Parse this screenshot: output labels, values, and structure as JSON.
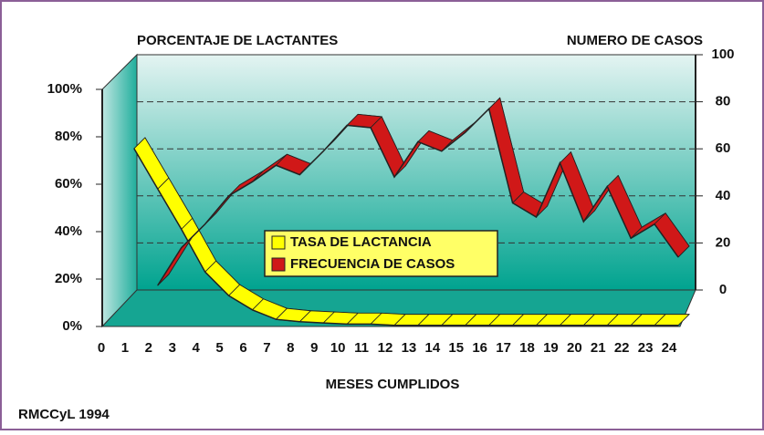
{
  "chart_data": {
    "type": "line",
    "ylabel": "PORCENTAJE DE LACTANTES",
    "y2label": "NUMERO DE CASOS",
    "xlabel": "MESES CUMPLIDOS",
    "source": "RMCCyL 1994",
    "x": [
      0,
      1,
      2,
      3,
      4,
      5,
      6,
      7,
      8,
      9,
      10,
      11,
      12,
      13,
      14,
      15,
      16,
      17,
      18,
      19,
      20,
      21,
      22,
      23,
      24
    ],
    "series": [
      {
        "name": "TASA DE LACTANCIA",
        "color": "#ffff00",
        "values": [
          null,
          75,
          58,
          41,
          23,
          13,
          7,
          3,
          2,
          1.5,
          1,
          1,
          0.5,
          0.5,
          0.5,
          0.5,
          0.5,
          0.5,
          0.5,
          0.5,
          0.5,
          0.5,
          0.5,
          0.5,
          0.5
        ]
      },
      {
        "name": "FRECUENCIA DE CASOS",
        "color": "#d01818",
        "axis": "y2",
        "values": [
          null,
          null,
          2,
          18,
          28,
          40,
          46,
          53,
          49,
          59,
          70,
          69,
          48,
          63,
          59,
          67,
          77,
          37,
          31,
          54,
          29,
          44,
          22,
          28,
          14
        ]
      }
    ],
    "ylim": [
      0,
      100
    ],
    "yticks": [
      {
        "value": 0,
        "label": "0%"
      },
      {
        "value": 20,
        "label": "20%"
      },
      {
        "value": 40,
        "label": "40%"
      },
      {
        "value": 60,
        "label": "60%"
      },
      {
        "value": 80,
        "label": "80%"
      },
      {
        "value": 100,
        "label": "100%"
      }
    ],
    "y2lim": [
      0,
      100
    ],
    "y2ticks": [
      0,
      20,
      40,
      60,
      80,
      100
    ],
    "grid": true
  }
}
